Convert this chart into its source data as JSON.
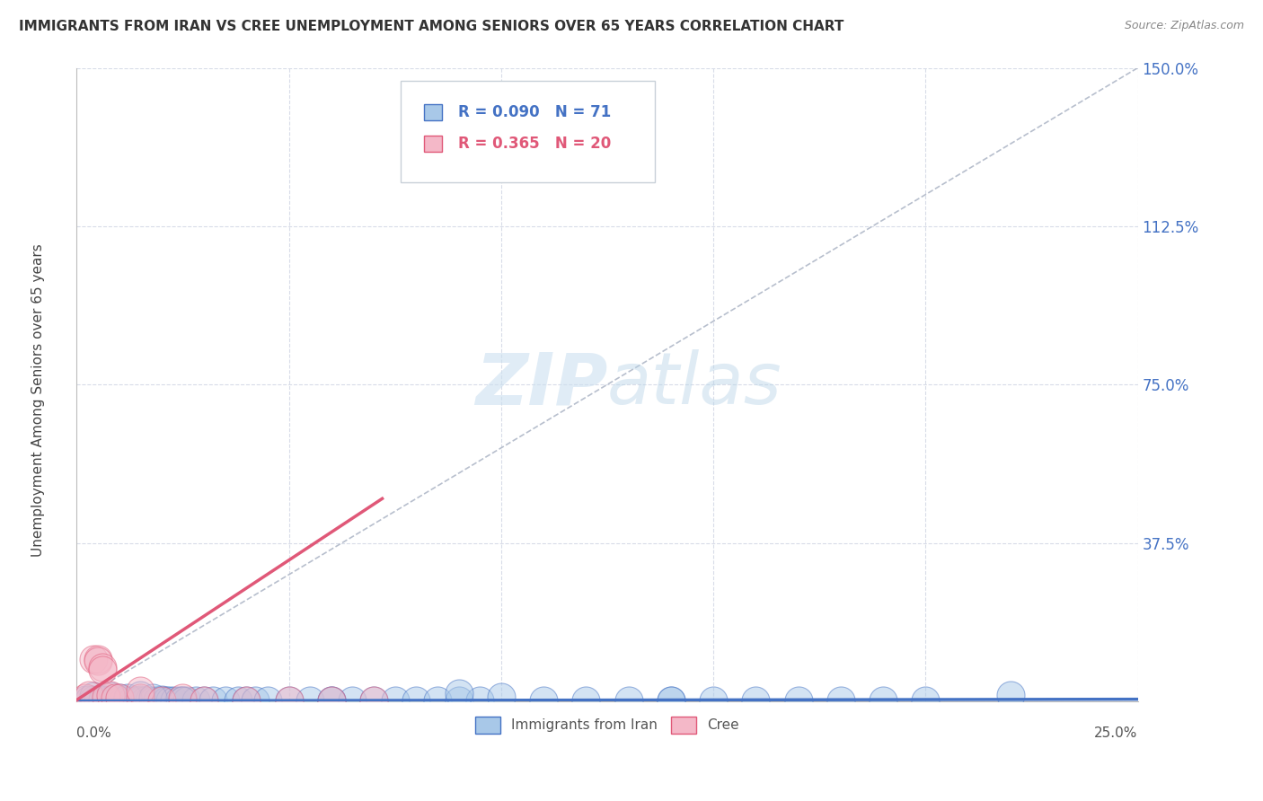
{
  "title": "IMMIGRANTS FROM IRAN VS CREE UNEMPLOYMENT AMONG SENIORS OVER 65 YEARS CORRELATION CHART",
  "source": "Source: ZipAtlas.com",
  "ylabel": "Unemployment Among Seniors over 65 years",
  "legend_label1": "Immigrants from Iran",
  "legend_label2": "Cree",
  "legend_r1": "R = 0.090",
  "legend_n1": "N = 71",
  "legend_r2": "R = 0.365",
  "legend_n2": "N = 20",
  "xlim": [
    0.0,
    0.25
  ],
  "ylim": [
    0.0,
    1.5
  ],
  "xtick_left_label": "0.0%",
  "xtick_right_label": "25.0%",
  "yticks": [
    0.0,
    0.375,
    0.75,
    1.125,
    1.5
  ],
  "yticklabels": [
    "",
    "37.5%",
    "75.0%",
    "112.5%",
    "150.0%"
  ],
  "color_blue": "#a8c8e8",
  "color_pink": "#f4b8c8",
  "color_blue_edge": "#4472c4",
  "color_pink_edge": "#e05878",
  "color_blue_line": "#4472c4",
  "color_pink_line": "#e05878",
  "color_diag_line": "#b0b8c8",
  "background_color": "#ffffff",
  "grid_color": "#d8dce8",
  "watermark_color": "#cce0f0",
  "blue_x": [
    0.002,
    0.003,
    0.004,
    0.005,
    0.006,
    0.006,
    0.007,
    0.007,
    0.008,
    0.008,
    0.009,
    0.01,
    0.01,
    0.011,
    0.012,
    0.013,
    0.014,
    0.015,
    0.015,
    0.016,
    0.017,
    0.018,
    0.019,
    0.02,
    0.02,
    0.021,
    0.022,
    0.023,
    0.024,
    0.025,
    0.026,
    0.028,
    0.03,
    0.032,
    0.035,
    0.038,
    0.04,
    0.042,
    0.045,
    0.05,
    0.055,
    0.06,
    0.065,
    0.07,
    0.075,
    0.08,
    0.085,
    0.09,
    0.095,
    0.1,
    0.11,
    0.12,
    0.13,
    0.14,
    0.15,
    0.16,
    0.17,
    0.18,
    0.19,
    0.2,
    0.004,
    0.008,
    0.01,
    0.012,
    0.015,
    0.018,
    0.025,
    0.06,
    0.09,
    0.14,
    0.22
  ],
  "blue_y": [
    0.004,
    0.004,
    0.004,
    0.004,
    0.003,
    0.004,
    0.004,
    0.003,
    0.004,
    0.003,
    0.004,
    0.004,
    0.003,
    0.003,
    0.003,
    0.003,
    0.003,
    0.003,
    0.004,
    0.003,
    0.003,
    0.003,
    0.003,
    0.003,
    0.004,
    0.003,
    0.003,
    0.003,
    0.003,
    0.003,
    0.003,
    0.003,
    0.003,
    0.003,
    0.003,
    0.003,
    0.003,
    0.003,
    0.003,
    0.003,
    0.003,
    0.003,
    0.003,
    0.003,
    0.003,
    0.003,
    0.003,
    0.003,
    0.003,
    0.01,
    0.003,
    0.003,
    0.003,
    0.003,
    0.003,
    0.003,
    0.003,
    0.003,
    0.003,
    0.003,
    0.012,
    0.012,
    0.008,
    0.008,
    0.015,
    0.008,
    0.003,
    0.003,
    0.02,
    0.003,
    0.015
  ],
  "pink_x": [
    0.002,
    0.003,
    0.004,
    0.005,
    0.005,
    0.006,
    0.006,
    0.007,
    0.008,
    0.009,
    0.01,
    0.015,
    0.015,
    0.02,
    0.025,
    0.03,
    0.04,
    0.05,
    0.06,
    0.07
  ],
  "pink_y": [
    0.008,
    0.015,
    0.1,
    0.1,
    0.095,
    0.08,
    0.075,
    0.01,
    0.015,
    0.008,
    0.008,
    0.008,
    0.025,
    0.003,
    0.008,
    0.003,
    0.003,
    0.003,
    0.003,
    0.003
  ],
  "blue_trend_x": [
    0.0,
    0.25
  ],
  "blue_trend_y": [
    0.001,
    0.005
  ],
  "pink_trend_x": [
    0.0,
    0.072
  ],
  "pink_trend_y": [
    0.003,
    0.48
  ]
}
